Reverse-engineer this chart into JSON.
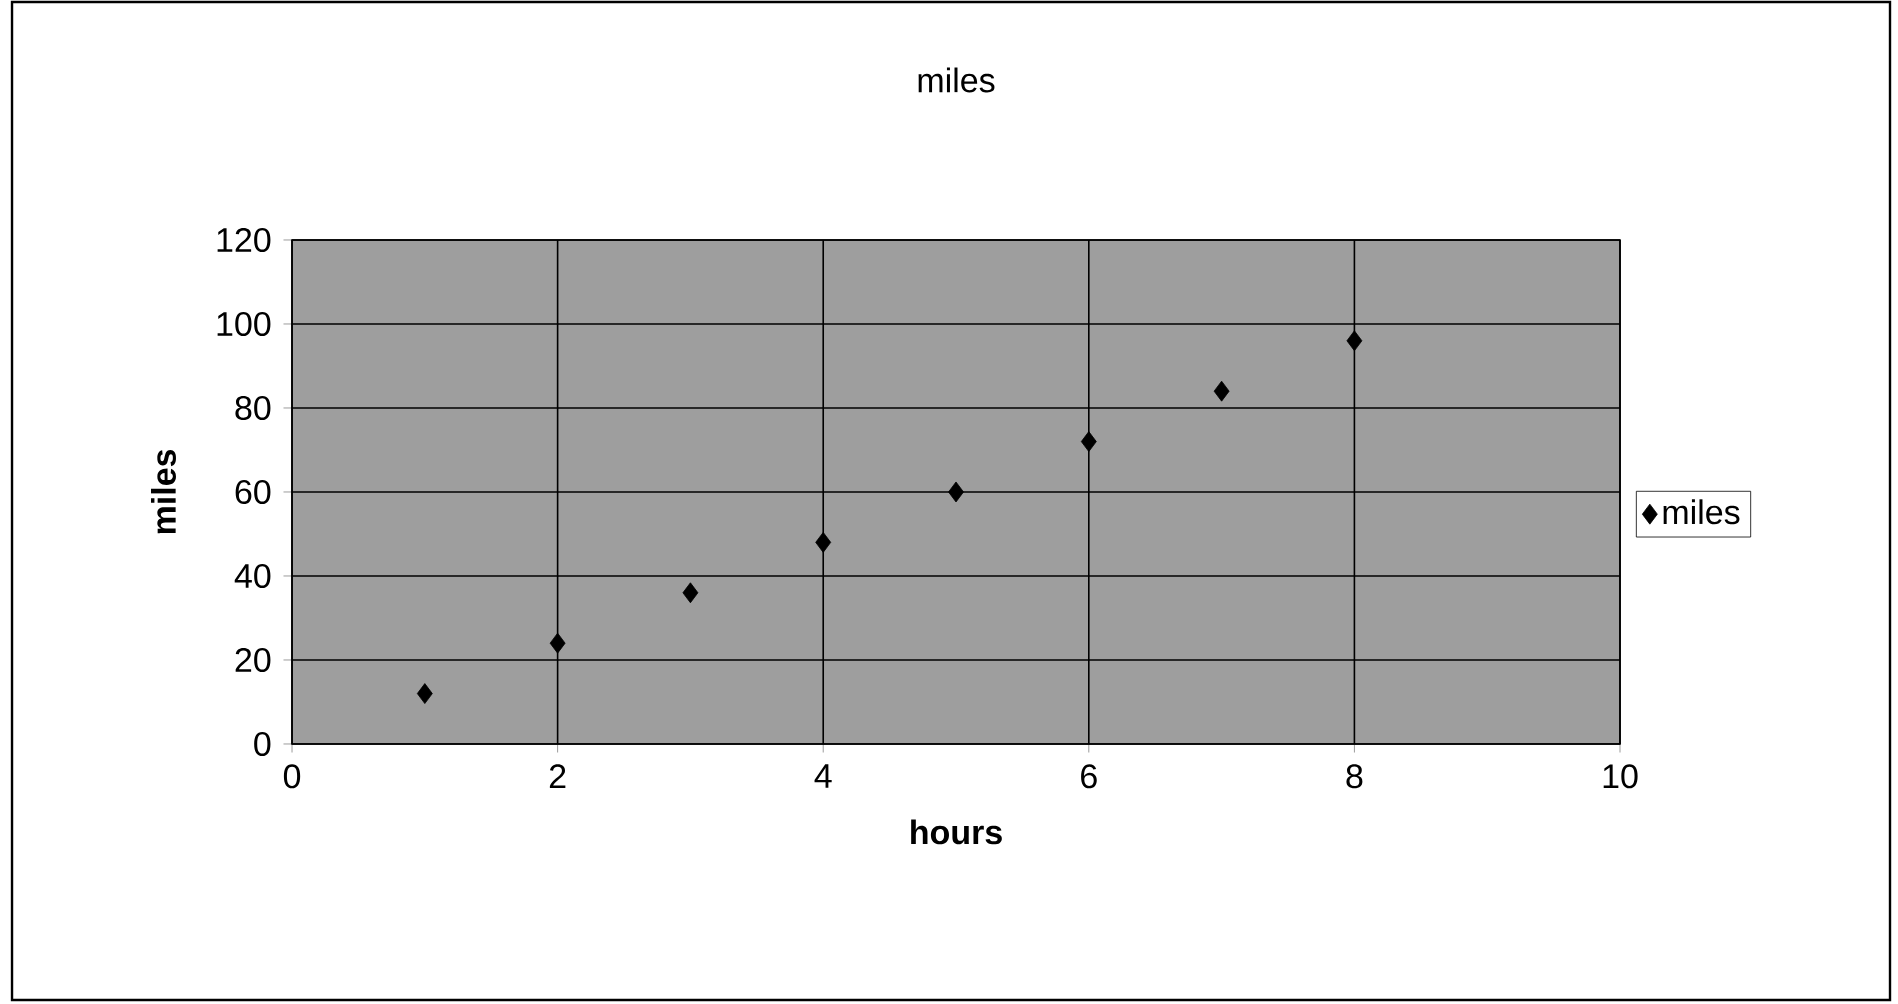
{
  "chart_data": {
    "type": "scatter",
    "title": "miles",
    "xlabel": "hours",
    "ylabel": "miles",
    "x": [
      1,
      2,
      3,
      4,
      5,
      6,
      7,
      8
    ],
    "series": [
      {
        "name": "miles",
        "color": "#000000",
        "values": [
          12,
          24,
          36,
          48,
          60,
          72,
          84,
          96
        ]
      }
    ],
    "xlim": [
      0,
      10
    ],
    "ylim": [
      0,
      120
    ],
    "xticks": [
      0,
      2,
      4,
      6,
      8,
      10
    ],
    "yticks": [
      0,
      20,
      40,
      60,
      80,
      100,
      120
    ],
    "grid": true,
    "legend": "right",
    "marker": "diamond"
  }
}
